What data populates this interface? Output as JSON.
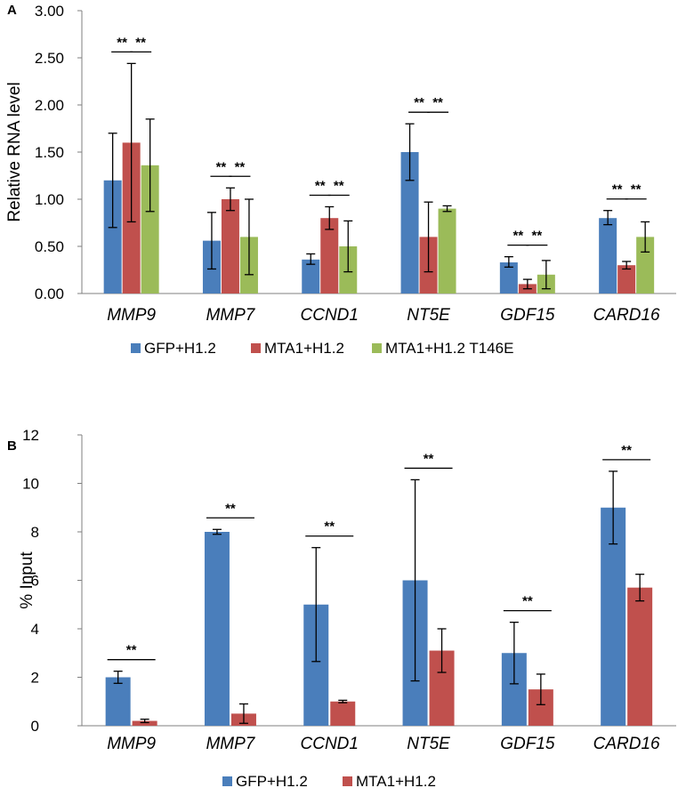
{
  "chart_data": [
    {
      "panel_label": "A",
      "type": "bar",
      "ylabel": "Relative RNA level",
      "ylim": [
        0,
        3
      ],
      "yticks": [
        "0.00",
        "0.50",
        "1.00",
        "1.50",
        "2.00",
        "2.50",
        "3.00"
      ],
      "categories": [
        "MMP9",
        "MMP7",
        "CCND1",
        "NT5E",
        "GDF15",
        "CARD16"
      ],
      "series": [
        {
          "name": "GFP+H1.2",
          "color": "#4a7ebb",
          "values": [
            1.2,
            0.56,
            0.36,
            1.5,
            0.33,
            0.8
          ],
          "err_low": [
            0.7,
            0.26,
            0.31,
            1.2,
            0.28,
            0.73
          ],
          "err_high": [
            1.7,
            0.86,
            0.42,
            1.8,
            0.39,
            0.88
          ]
        },
        {
          "name": "MTA1+H1.2",
          "color": "#c0504d",
          "values": [
            1.6,
            1.0,
            0.8,
            0.6,
            0.1,
            0.3
          ],
          "err_low": [
            0.76,
            0.88,
            0.68,
            0.23,
            0.05,
            0.26
          ],
          "err_high": [
            2.44,
            1.12,
            0.92,
            0.97,
            0.15,
            0.34
          ]
        },
        {
          "name": "MTA1+H1.2 T146E",
          "color": "#9bbb59",
          "values": [
            1.36,
            0.6,
            0.5,
            0.9,
            0.2,
            0.6
          ],
          "err_low": [
            0.87,
            0.2,
            0.23,
            0.87,
            0.05,
            0.44
          ],
          "err_high": [
            1.85,
            1.0,
            0.77,
            0.93,
            0.35,
            0.76
          ]
        }
      ],
      "significance": [
        {
          "label": "**",
          "pairs": [
            [
              0,
              1
            ],
            [
              1,
              2
            ]
          ]
        },
        {
          "label": "**",
          "pairs": [
            [
              0,
              1
            ],
            [
              1,
              2
            ]
          ]
        },
        {
          "label": "**",
          "pairs": [
            [
              0,
              1
            ],
            [
              1,
              2
            ]
          ]
        },
        {
          "label": "**",
          "pairs": [
            [
              0,
              1
            ],
            [
              1,
              2
            ]
          ]
        },
        {
          "label": "**",
          "pairs": [
            [
              0,
              1
            ],
            [
              1,
              2
            ]
          ]
        },
        {
          "label": "**",
          "pairs": [
            [
              0,
              1
            ],
            [
              1,
              2
            ]
          ]
        }
      ],
      "legend_position": "bottom"
    },
    {
      "panel_label": "B",
      "type": "bar",
      "ylabel": "% Input",
      "ylim": [
        0,
        12
      ],
      "yticks": [
        "0",
        "2",
        "4",
        "6",
        "8",
        "10",
        "12"
      ],
      "categories": [
        "MMP9",
        "MMP7",
        "CCND1",
        "NT5E",
        "GDF15",
        "CARD16"
      ],
      "series": [
        {
          "name": "GFP+H1.2",
          "color": "#4a7ebb",
          "values": [
            2.0,
            8.0,
            5.0,
            6.0,
            3.0,
            9.0
          ],
          "err_low": [
            1.75,
            7.9,
            2.65,
            1.85,
            1.73,
            7.5
          ],
          "err_high": [
            2.25,
            8.1,
            7.35,
            10.15,
            4.27,
            10.5
          ]
        },
        {
          "name": "MTA1+H1.2",
          "color": "#c0504d",
          "values": [
            0.2,
            0.5,
            1.0,
            3.1,
            1.5,
            5.7
          ],
          "err_low": [
            0.13,
            0.1,
            0.95,
            2.2,
            0.87,
            5.15
          ],
          "err_high": [
            0.27,
            0.9,
            1.05,
            4.0,
            2.13,
            6.25
          ]
        }
      ],
      "significance": [
        {
          "label": "**",
          "pairs": [
            [
              0,
              1
            ]
          ]
        },
        {
          "label": "**",
          "pairs": [
            [
              0,
              1
            ]
          ]
        },
        {
          "label": "**",
          "pairs": [
            [
              0,
              1
            ]
          ]
        },
        {
          "label": "**",
          "pairs": [
            [
              0,
              1
            ]
          ]
        },
        {
          "label": "**",
          "pairs": [
            [
              0,
              1
            ]
          ]
        },
        {
          "label": "**",
          "pairs": [
            [
              0,
              1
            ]
          ]
        }
      ],
      "legend_position": "bottom"
    }
  ]
}
